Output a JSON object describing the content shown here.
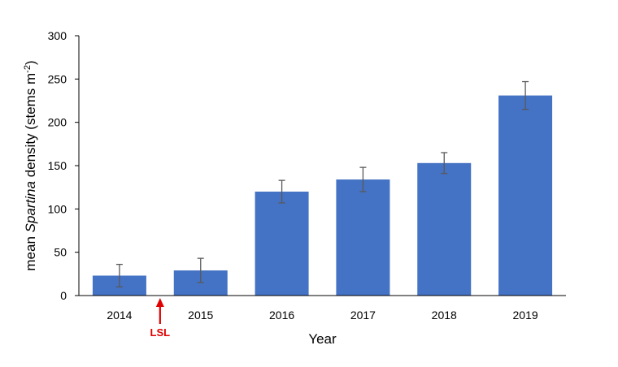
{
  "chart_data": {
    "type": "bar",
    "categories": [
      "2014",
      "2015",
      "2016",
      "2017",
      "2018",
      "2019"
    ],
    "values": [
      23,
      29,
      120,
      134,
      153,
      231
    ],
    "error": [
      13,
      14,
      13,
      14,
      12,
      16
    ],
    "xlabel": "Year",
    "ylabel": {
      "prefix": "mean ",
      "italic": "Spartina",
      "suffix": " density (stems m",
      "superscript": "-2",
      "close": ")"
    },
    "ylim": [
      0,
      300
    ],
    "yticks": [
      0,
      50,
      100,
      150,
      200,
      250,
      300
    ],
    "grid": false,
    "legend": "none",
    "annotation": {
      "text": "LSL",
      "between": [
        "2014",
        "2015"
      ]
    },
    "colors": {
      "bar": "#4472C4",
      "error_bar": "#595959",
      "annotation": "#E00000",
      "axis": "#000000"
    }
  }
}
